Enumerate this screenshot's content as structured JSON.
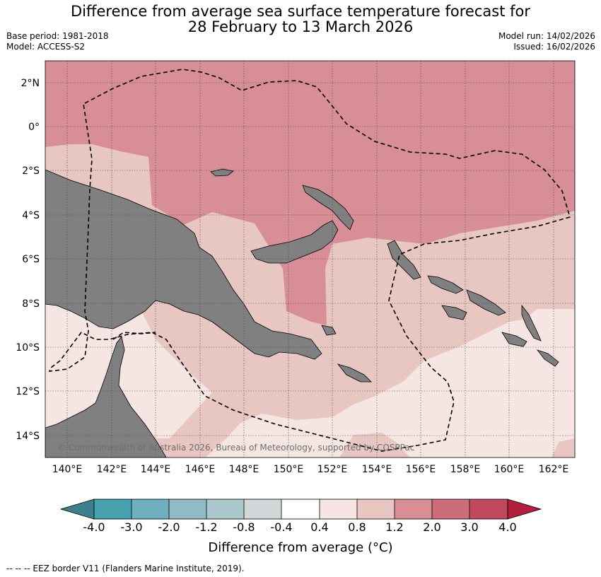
{
  "title_line1": "Difference from average sea surface temperature forecast for",
  "title_line2": "28 February to 13 March 2026",
  "meta_left": {
    "base_period": "Base period: 1981-2018",
    "model": "Model: ACCESS-S2"
  },
  "meta_right": {
    "model_run": "Model run: 14/02/2026",
    "issued": "Issued: 16/02/2026"
  },
  "map": {
    "lat_labels": [
      "2°N",
      "0°",
      "2°S",
      "4°S",
      "6°S",
      "8°S",
      "10°S",
      "12°S",
      "14°S"
    ],
    "lon_labels": [
      "140°E",
      "142°E",
      "144°E",
      "146°E",
      "148°E",
      "150°E",
      "152°E",
      "154°E",
      "156°E",
      "158°E",
      "160°E",
      "162°E"
    ],
    "copyright": "© Commonwealth of Australia 2026, Bureau of Meteorology, supported by COSPPac",
    "land_color": "#808080",
    "grid": true
  },
  "colorbar": {
    "ticks": [
      "-4.0",
      "-3.0",
      "-2.0",
      "-1.2",
      "-0.8",
      "-0.4",
      "0.4",
      "0.8",
      "1.2",
      "2.0",
      "3.0",
      "4.0"
    ],
    "colors": [
      "#3d7f8c",
      "#47a0b0",
      "#6fb0bf",
      "#8ebbc4",
      "#aac8cc",
      "#d0d8d9",
      "#ffffff",
      "#f5e6e3",
      "#e8c6c1",
      "#d78e96",
      "#cc6d77",
      "#c04a5b",
      "#b31e3c"
    ],
    "label": "Difference from average (°C)"
  },
  "footnote": "--  --  -- EEZ border V11 (Flanders Marine Institute, 2019)."
}
